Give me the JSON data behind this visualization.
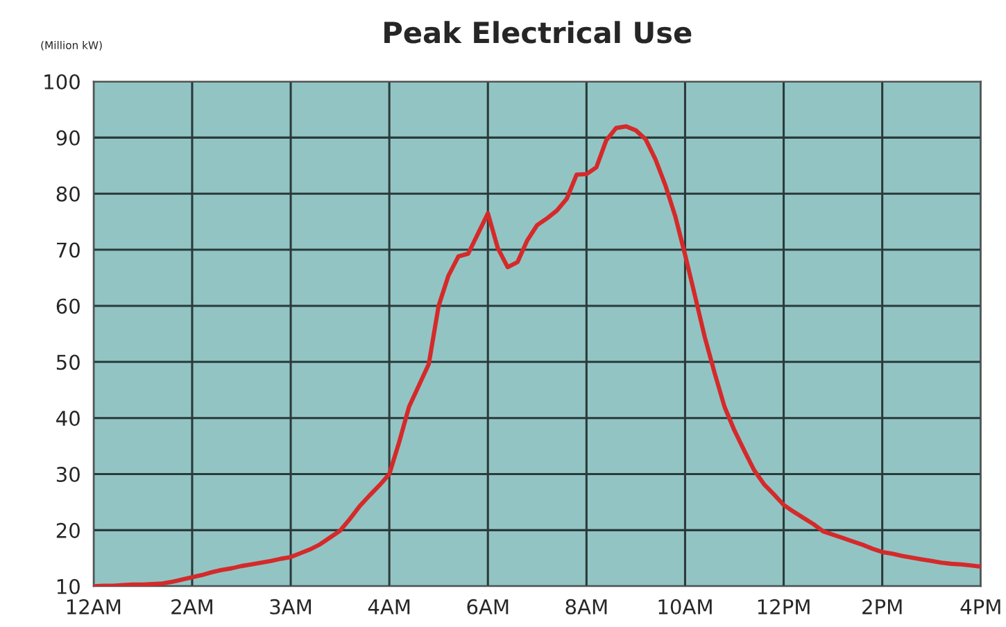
{
  "chart_data": {
    "type": "line",
    "title": "Peak Electrical Use",
    "ylabel": "(Million kW)",
    "categories": [
      "12AM",
      null,
      null,
      null,
      null,
      null,
      null,
      null,
      null,
      null,
      "2AM",
      null,
      null,
      null,
      null,
      null,
      null,
      null,
      null,
      null,
      "3AM",
      null,
      null,
      null,
      null,
      null,
      null,
      null,
      null,
      null,
      "4AM",
      null,
      null,
      null,
      null,
      null,
      null,
      null,
      null,
      null,
      "6AM",
      null,
      null,
      null,
      null,
      null,
      null,
      null,
      null,
      null,
      "8AM",
      null,
      null,
      null,
      null,
      null,
      null,
      null,
      null,
      null,
      "10AM",
      null,
      null,
      null,
      null,
      null,
      null,
      null,
      null,
      null,
      "12PM",
      null,
      null,
      null,
      null,
      null,
      null,
      null,
      null,
      null,
      "2PM",
      null,
      null,
      null,
      null,
      null,
      null,
      null,
      null,
      null,
      "4PM"
    ],
    "series": [
      {
        "color": "#d42a2a",
        "values": [
          10,
          10.1,
          10.1,
          10.2,
          10.3,
          10.3,
          10.4,
          10.5,
          10.8,
          11.2,
          11.6,
          12.0,
          12.5,
          12.9,
          13.2,
          13.6,
          13.9,
          14.2,
          14.5,
          14.9,
          15.2,
          15.9,
          16.6,
          17.5,
          18.7,
          19.9,
          22,
          24.3,
          26.2,
          28,
          30,
          35.7,
          42,
          45.8,
          49.6,
          60,
          65.4,
          68.8,
          69.3,
          72.9,
          76.5,
          70.3,
          66.9,
          67.8,
          71.7,
          74.4,
          75.6,
          77,
          79.1,
          83.4,
          83.5,
          84.7,
          89.5,
          91.7,
          92.0,
          91.3,
          89.7,
          86.1,
          81.5,
          76,
          69.1,
          61.8,
          54.4,
          48,
          42,
          37.8,
          34.2,
          30.7,
          28.2,
          26.4,
          24.5,
          23.3,
          22.2,
          21.1,
          19.8,
          19.2,
          18.6,
          18,
          17.4,
          16.7,
          16.1,
          15.8,
          15.4,
          15.1,
          14.8,
          14.5,
          14.2,
          14.0,
          13.9,
          13.7,
          13.5
        ]
      }
    ],
    "ylim": [
      10,
      100
    ],
    "yticks": [
      10,
      20,
      30,
      40,
      50,
      60,
      70,
      80,
      90,
      100
    ],
    "grid": true,
    "marker": "none",
    "line_style": "solid"
  }
}
